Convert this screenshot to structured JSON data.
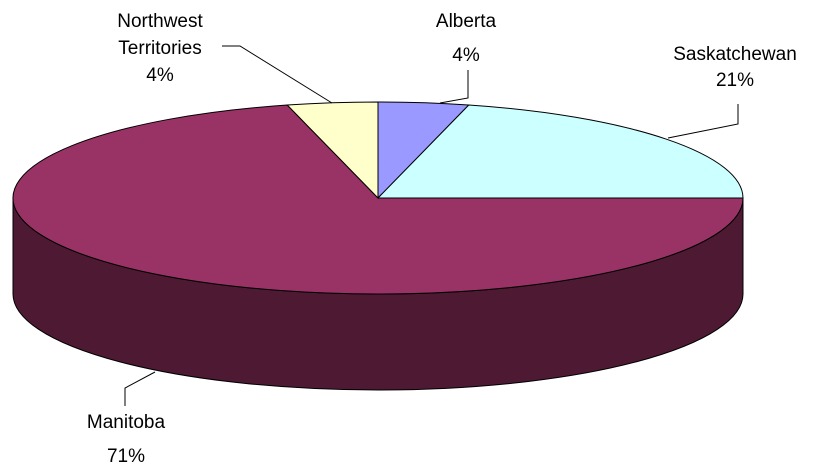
{
  "chart_data": {
    "type": "pie",
    "style": "3d",
    "slices": [
      {
        "label": "Alberta",
        "value": 4,
        "display": "4%",
        "color": "#9999ff"
      },
      {
        "label": "Saskatchewan",
        "value": 21,
        "display": "21%",
        "color": "#ccffff"
      },
      {
        "label": "Manitoba",
        "value": 71,
        "display": "71%",
        "color": "#993366"
      },
      {
        "label_line1": "Northwest",
        "label_line2": "Territories",
        "value": 4,
        "display": "4%",
        "color": "#ffffcc"
      }
    ],
    "side_color": "#4d1933",
    "edge_color": "#000000"
  }
}
